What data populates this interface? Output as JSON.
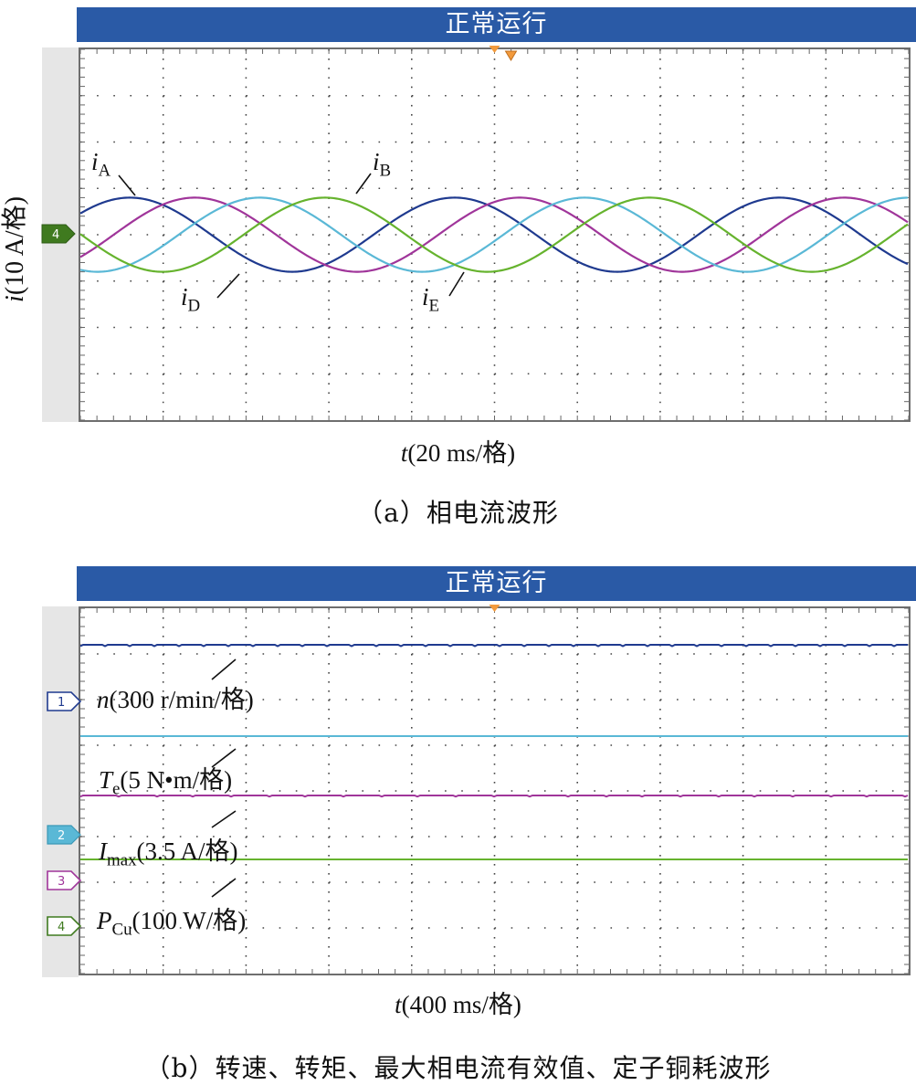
{
  "chart_data": [
    {
      "type": "line",
      "title": "正常运行",
      "ylabel_var": "i",
      "ylabel_unit": "(10 A/格)",
      "xlabel_var": "t",
      "xlabel_unit": "(20 ms/格)",
      "caption": "（a）相电流波形",
      "x_divisions": 10,
      "y_divisions": 8,
      "channel_marker": "4",
      "grid": true,
      "series": [
        {
          "name": "i",
          "sub": "A",
          "color": "#1f3a8f",
          "amplitude_div": 0.8,
          "period_div": 3.92,
          "phase_deg": 0
        },
        {
          "name": "",
          "sub": "",
          "color": "#a0359a",
          "amplitude_div": 0.8,
          "period_div": 3.92,
          "phase_deg": -72
        },
        {
          "name": "i",
          "sub": "B",
          "color": "#5ab8d6",
          "amplitude_div": 0.8,
          "period_div": 3.92,
          "phase_deg": -144
        },
        {
          "name": "",
          "sub": "",
          "color": "#66b32e",
          "amplitude_div": 0.8,
          "period_div": 3.92,
          "phase_deg": -216
        }
      ],
      "labels": [
        {
          "var": "i",
          "sub": "A"
        },
        {
          "var": "i",
          "sub": "B"
        },
        {
          "var": "i",
          "sub": "D"
        },
        {
          "var": "i",
          "sub": "E"
        }
      ]
    },
    {
      "type": "line",
      "title": "正常运行",
      "xlabel_var": "t",
      "xlabel_unit": "(400 ms/格)",
      "caption": "（b）转速、转矩、最大相电流有效值、定子铜耗波形",
      "x_divisions": 10,
      "y_divisions": 8,
      "grid": true,
      "series": [
        {
          "marker": "1",
          "var": "n",
          "sub": "",
          "unit": "(300 r/min/格)",
          "color": "#1f3a8f",
          "level_div": 7.2
        },
        {
          "marker": "2",
          "var": "T",
          "sub": "e",
          "unit": "(5 N•m/格)",
          "color": "#5ab8d6",
          "level_div": 5.2
        },
        {
          "marker": "3",
          "var": "I",
          "sub": "max",
          "unit": "(3.5 A/格)",
          "color": "#a0359a",
          "level_div": 3.9
        },
        {
          "marker": "4",
          "var": "P",
          "sub": "Cu",
          "unit": "(100 W/格)",
          "color": "#66b32e",
          "level_div": 2.5
        }
      ]
    }
  ]
}
